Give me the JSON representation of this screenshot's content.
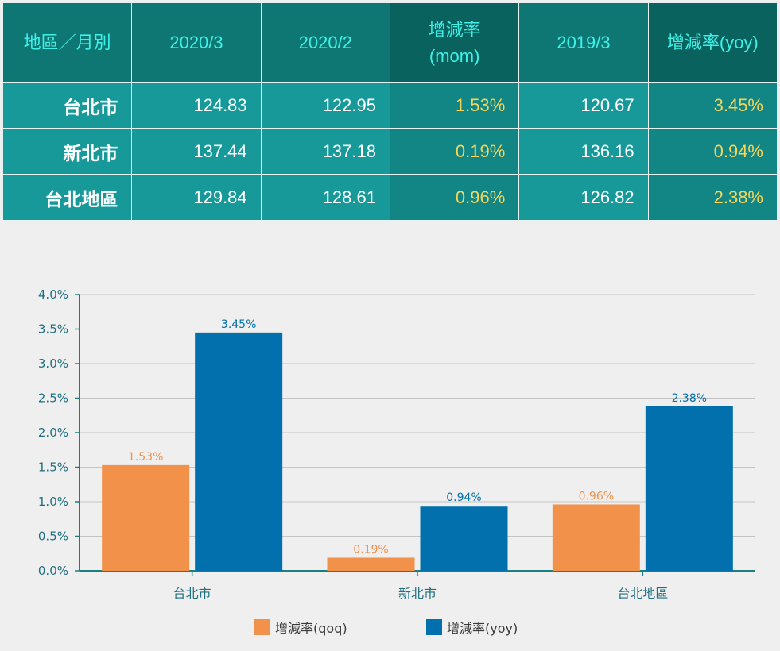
{
  "table": {
    "headers": [
      "地區／月別",
      "2020/3",
      "2020/2",
      "增減率\n(mom)",
      "2019/3",
      "增減率(yoy)"
    ],
    "rows": [
      {
        "region": "台北市",
        "v2020_3": "124.83",
        "v2020_2": "122.95",
        "mom": "1.53%",
        "v2019_3": "120.67",
        "yoy": "3.45%"
      },
      {
        "region": "新北市",
        "v2020_3": "137.44",
        "v2020_2": "137.18",
        "mom": "0.19%",
        "v2019_3": "136.16",
        "yoy": "0.94%"
      },
      {
        "region": "台北地區",
        "v2020_3": "129.84",
        "v2020_2": "128.61",
        "mom": "0.96%",
        "v2019_3": "126.82",
        "yoy": "2.38%"
      }
    ]
  },
  "chart_data": {
    "type": "bar",
    "categories": [
      "台北市",
      "新北市",
      "台北地區"
    ],
    "series": [
      {
        "name": "增減率(qoq)",
        "values": [
          1.53,
          0.19,
          0.96
        ],
        "labels": [
          "1.53%",
          "0.19%",
          "0.96%"
        ],
        "color": "#f2914a"
      },
      {
        "name": "增減率(yoy)",
        "values": [
          3.45,
          0.94,
          2.38
        ],
        "labels": [
          "3.45%",
          "0.94%",
          "2.38%"
        ],
        "color": "#0170ad"
      }
    ],
    "yticks": [
      "0.0%",
      "0.5%",
      "1.0%",
      "1.5%",
      "2.0%",
      "2.5%",
      "3.0%",
      "3.5%",
      "4.0%"
    ],
    "ylim": [
      0,
      4
    ],
    "grid": true,
    "legend": "bottom",
    "axis_color": "#1a7f7f",
    "label_color": "#1f6f80"
  }
}
